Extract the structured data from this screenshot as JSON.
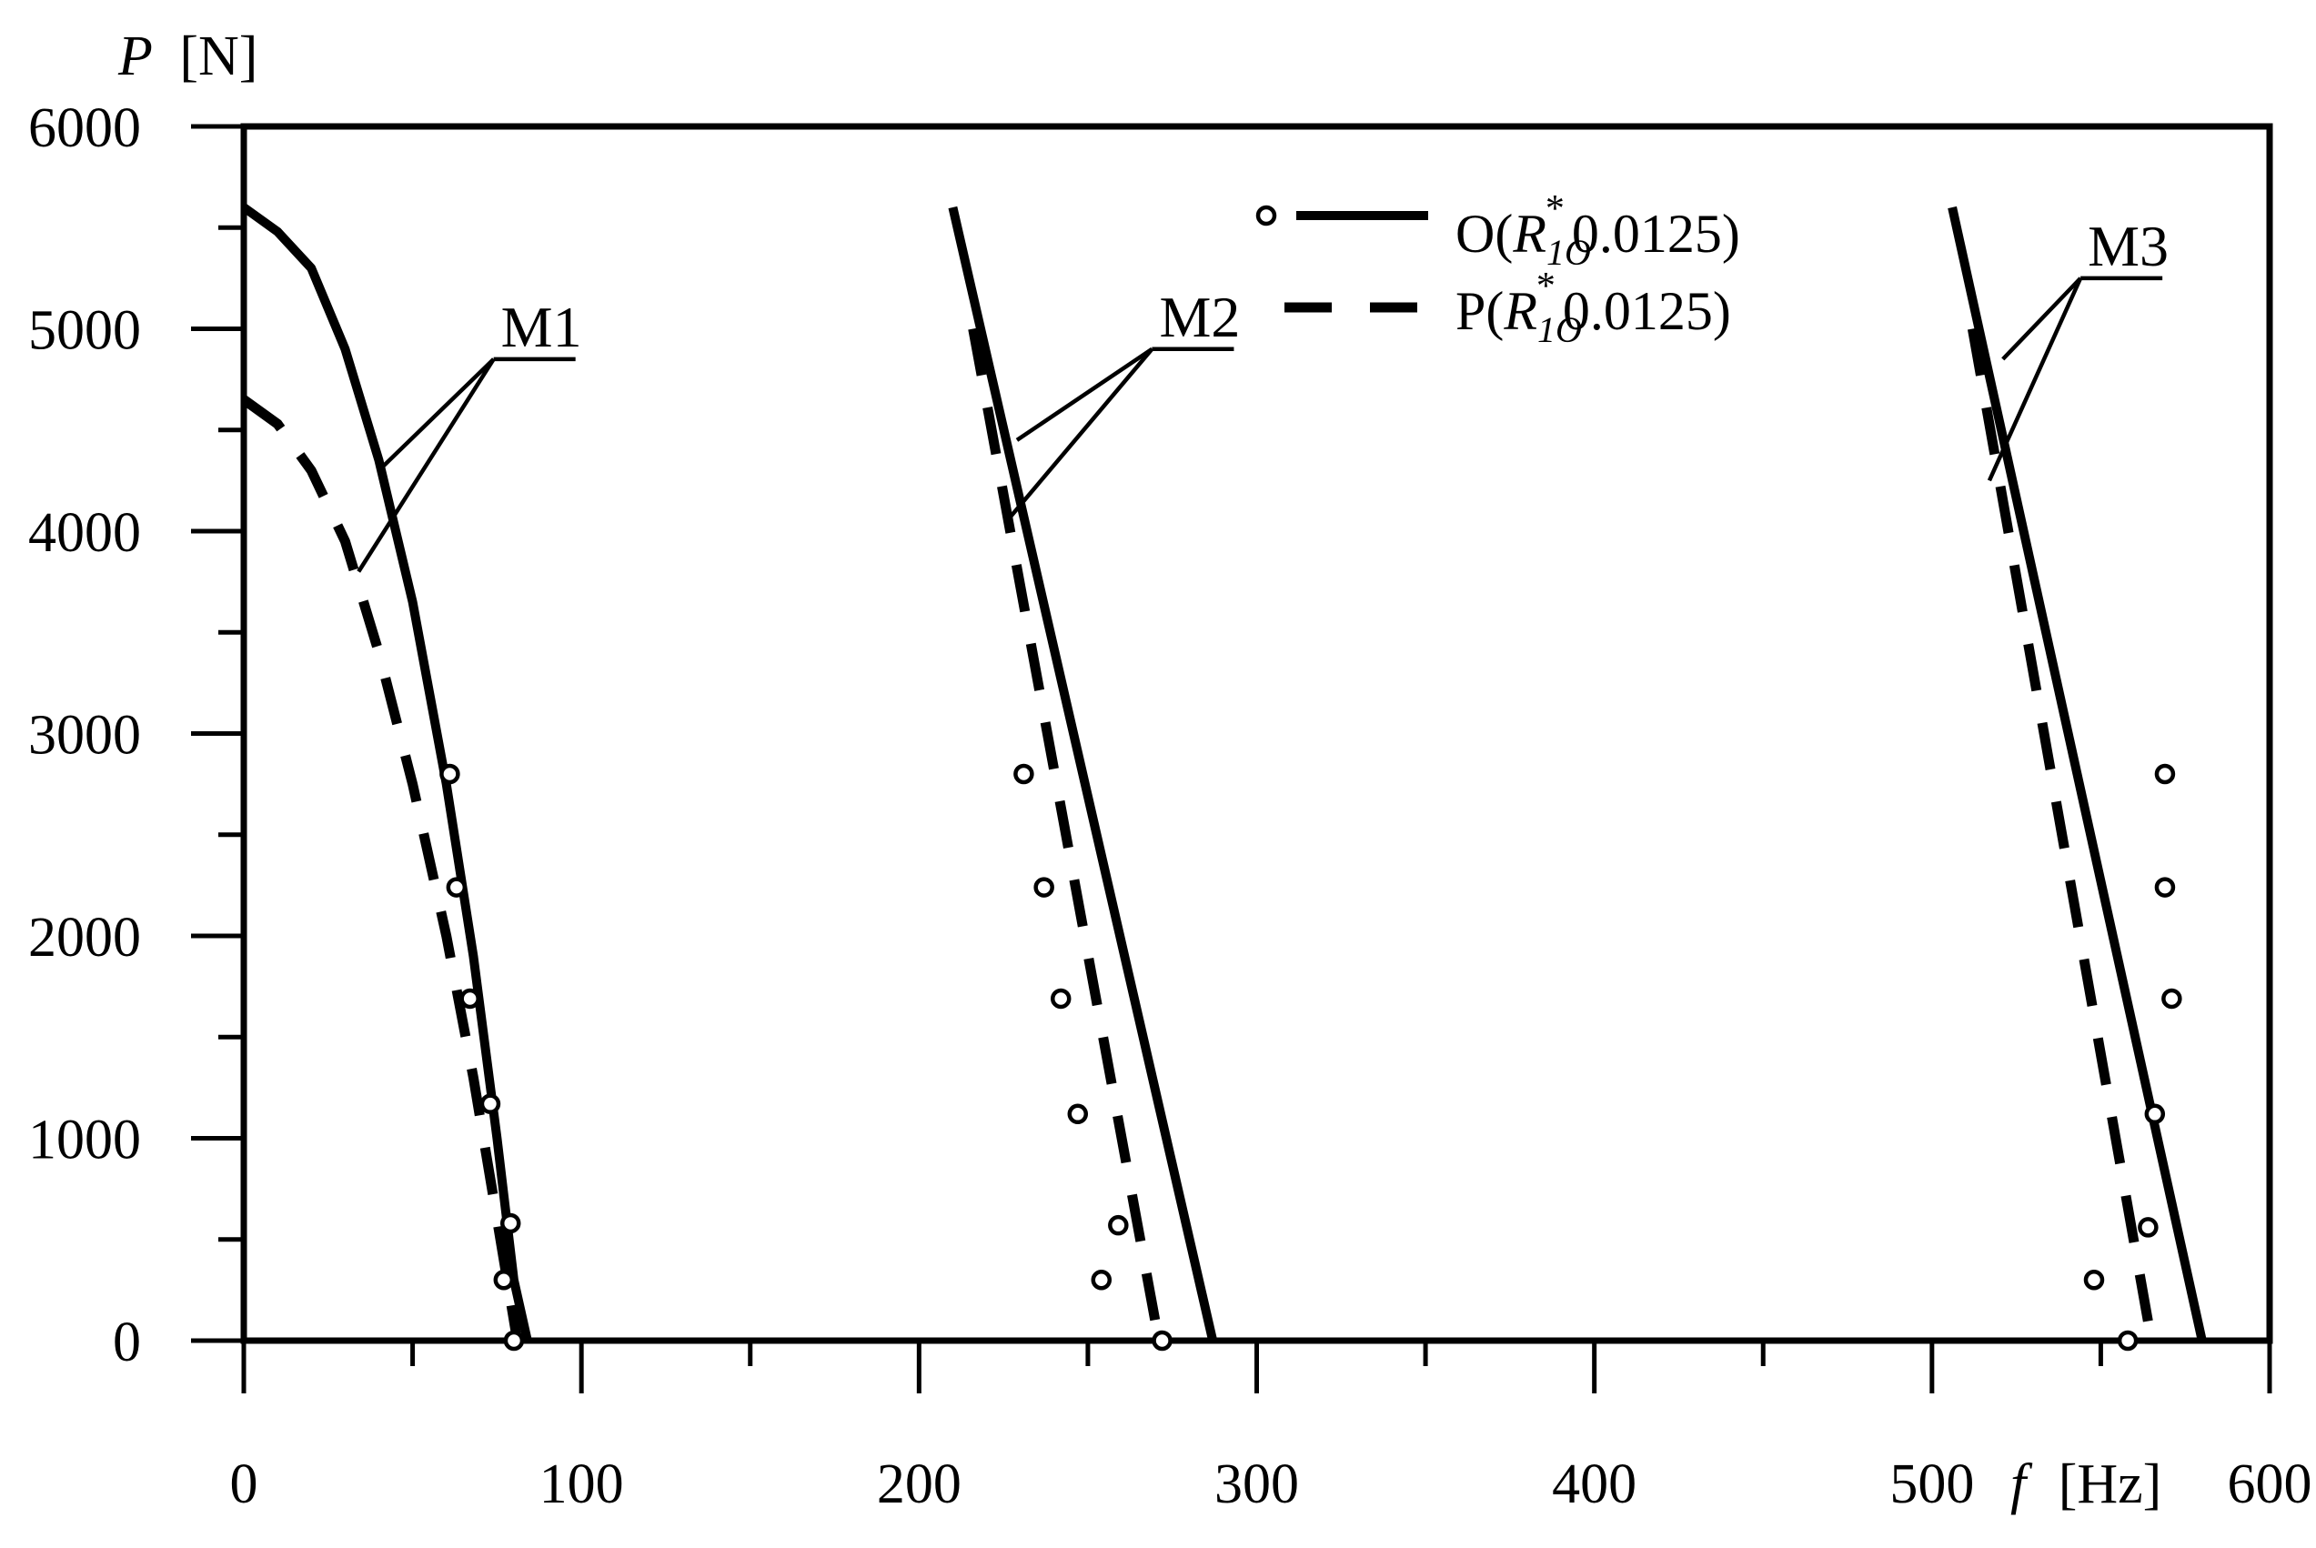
{
  "chart_data": {
    "type": "line",
    "xlabel": {
      "var": "f",
      "unit": "[Hz]"
    },
    "ylabel": {
      "var": "P",
      "unit": "[N]"
    },
    "xlim": [
      0,
      600
    ],
    "ylim": [
      0,
      6000
    ],
    "x_ticks": [
      "0",
      "100",
      "200",
      "300",
      "400",
      "500",
      "600"
    ],
    "y_ticks": [
      "0",
      "1000",
      "2000",
      "3000",
      "4000",
      "5000",
      "6000"
    ],
    "grid": false,
    "legend_position": "top-center",
    "legend": [
      {
        "label_prefix": "O(",
        "sym": "R",
        "sub": "1O",
        "sup": "*",
        "label_suffix": "0.0125)",
        "style": "solid-with-circle"
      },
      {
        "label_prefix": "P(",
        "sym": "R",
        "sub": "1O",
        "sup": "*",
        "label_suffix": "0.0125)",
        "style": "dashed"
      }
    ],
    "mode_labels": [
      {
        "text": "M1",
        "x": 74,
        "y": 4850,
        "pointers": [
          [
            40,
            4300
          ],
          [
            34,
            3800
          ]
        ]
      },
      {
        "text": "M2",
        "x": 269,
        "y": 4900,
        "pointers": [
          [
            229,
            4450
          ],
          [
            226,
            4050
          ]
        ]
      },
      {
        "text": "M3",
        "x": 544,
        "y": 5250,
        "pointers": [
          [
            521,
            4850
          ],
          [
            517,
            4250
          ]
        ]
      }
    ],
    "series": [
      {
        "name": "O",
        "style": "solid",
        "mode": "M1",
        "points": [
          [
            0,
            5600
          ],
          [
            10,
            5480
          ],
          [
            20,
            5300
          ],
          [
            30,
            4900
          ],
          [
            40,
            4350
          ],
          [
            50,
            3650
          ],
          [
            60,
            2750
          ],
          [
            68,
            1900
          ],
          [
            75,
            1000
          ],
          [
            80,
            300
          ],
          [
            84,
            0
          ]
        ]
      },
      {
        "name": "O",
        "style": "solid",
        "mode": "M2",
        "points": [
          [
            210,
            5600
          ],
          [
            287,
            0
          ]
        ]
      },
      {
        "name": "O",
        "style": "solid",
        "mode": "M3",
        "points": [
          [
            506,
            5600
          ],
          [
            580,
            0
          ]
        ]
      },
      {
        "name": "P",
        "style": "dashed",
        "mode": "M1",
        "points": [
          [
            0,
            4650
          ],
          [
            10,
            4530
          ],
          [
            20,
            4300
          ],
          [
            30,
            3950
          ],
          [
            40,
            3400
          ],
          [
            50,
            2750
          ],
          [
            60,
            2000
          ],
          [
            68,
            1300
          ],
          [
            75,
            600
          ],
          [
            81,
            0
          ]
        ]
      },
      {
        "name": "P",
        "style": "dashed",
        "mode": "M2",
        "points": [
          [
            216,
            5000
          ],
          [
            271,
            0
          ]
        ]
      },
      {
        "name": "P",
        "style": "dashed",
        "mode": "M3",
        "points": [
          [
            512,
            5000
          ],
          [
            565,
            0
          ]
        ]
      },
      {
        "name": "O",
        "style": "markers",
        "mode": "M1",
        "points": [
          [
            61,
            2800
          ],
          [
            63,
            2240
          ],
          [
            67,
            1690
          ],
          [
            73,
            1170
          ],
          [
            79,
            580
          ],
          [
            77,
            300
          ],
          [
            80,
            0
          ]
        ]
      },
      {
        "name": "O",
        "style": "markers",
        "mode": "M2",
        "points": [
          [
            231,
            2800
          ],
          [
            237,
            2240
          ],
          [
            242,
            1690
          ],
          [
            247,
            1120
          ],
          [
            259,
            570
          ],
          [
            254,
            300
          ],
          [
            272,
            0
          ]
        ]
      },
      {
        "name": "O",
        "style": "markers",
        "mode": "M3",
        "points": [
          [
            569,
            2800
          ],
          [
            569,
            2240
          ],
          [
            571,
            1690
          ],
          [
            566,
            1120
          ],
          [
            564,
            560
          ],
          [
            548,
            300
          ],
          [
            558,
            0
          ]
        ]
      }
    ]
  }
}
